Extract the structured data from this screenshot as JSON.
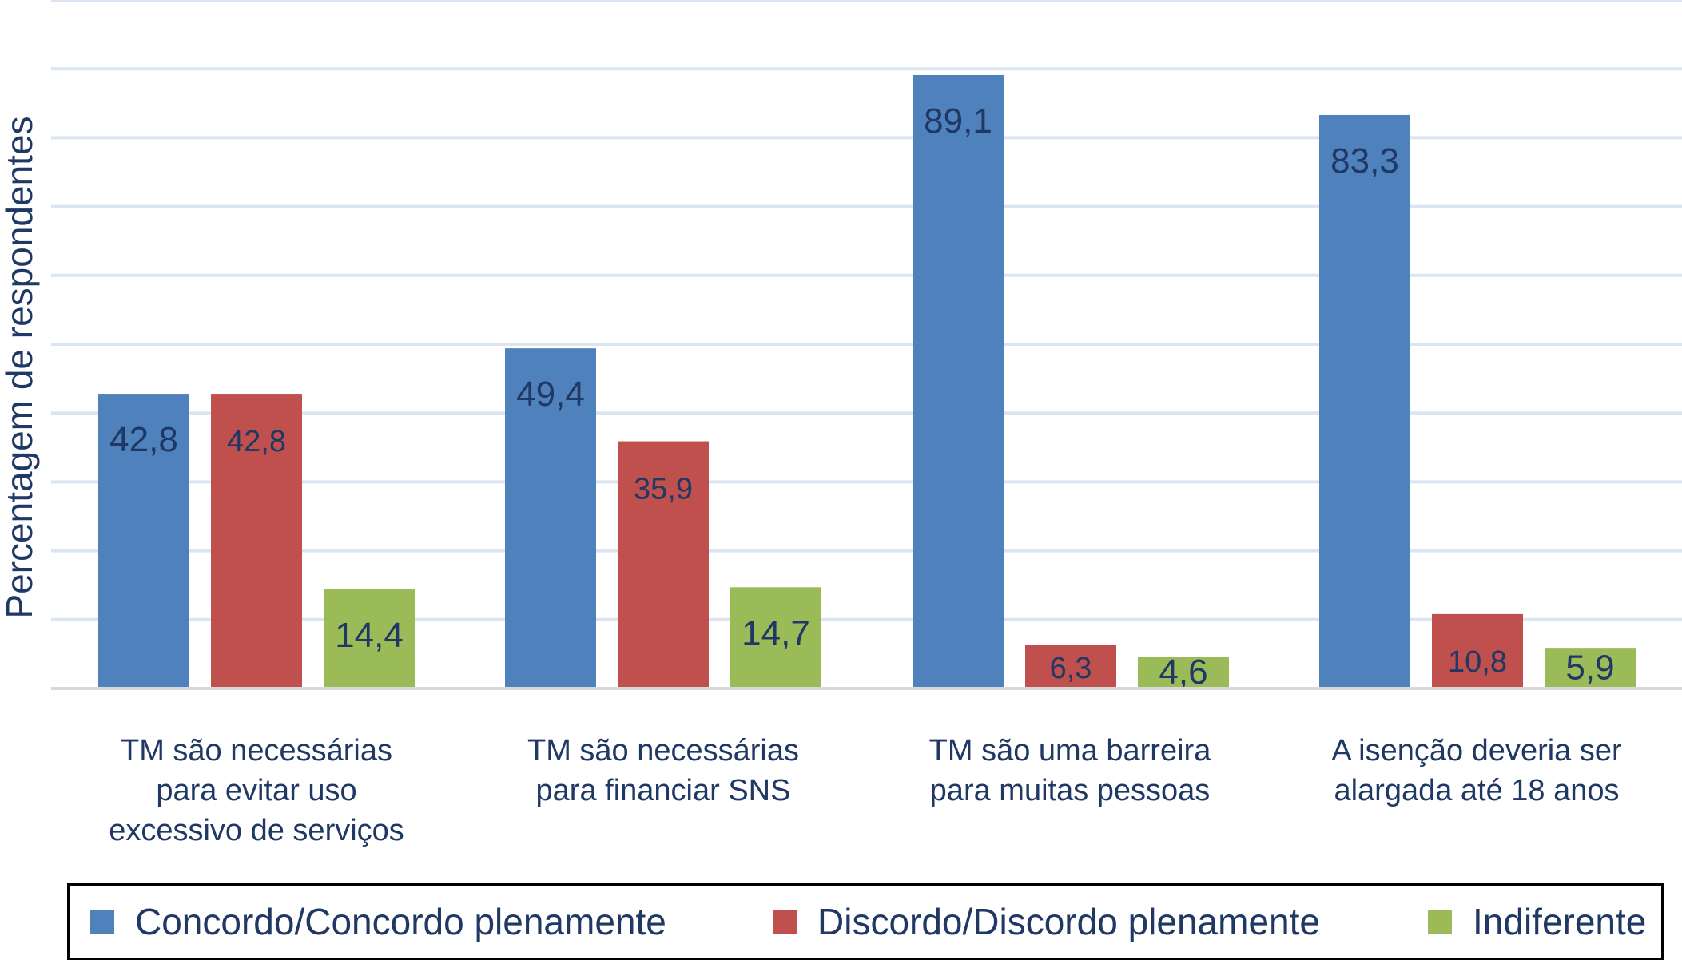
{
  "chart_data": {
    "type": "bar",
    "ylabel": "Percentagem de respondentes",
    "ylim": [
      0,
      100
    ],
    "grid": true,
    "legend_position": "bottom",
    "categories": [
      "TM são necessárias\npara evitar uso\nexcessivo de serviços",
      "TM são necessárias\npara financiar SNS",
      "TM são uma barreira\npara muitas pessoas",
      "A isenção deveria ser\nalargada até 18 anos"
    ],
    "series": [
      {
        "name": "Concordo/Concordo plenamente",
        "color": "#4f81bd",
        "values": [
          42.8,
          49.4,
          89.1,
          83.3
        ],
        "labels": [
          "42,8",
          "49,4",
          "89,1",
          "83,3"
        ]
      },
      {
        "name": "Discordo/Discordo plenamente",
        "color": "#c0504d",
        "values": [
          42.8,
          35.9,
          6.3,
          10.8
        ],
        "labels": [
          "42,8",
          "35,9",
          "6,3",
          "10,8"
        ]
      },
      {
        "name": "Indiferente",
        "color": "#9bbb59",
        "values": [
          14.4,
          14.7,
          4.6,
          5.9
        ],
        "labels": [
          "14,4",
          "14,7",
          "4,6",
          "5,9"
        ]
      }
    ]
  }
}
